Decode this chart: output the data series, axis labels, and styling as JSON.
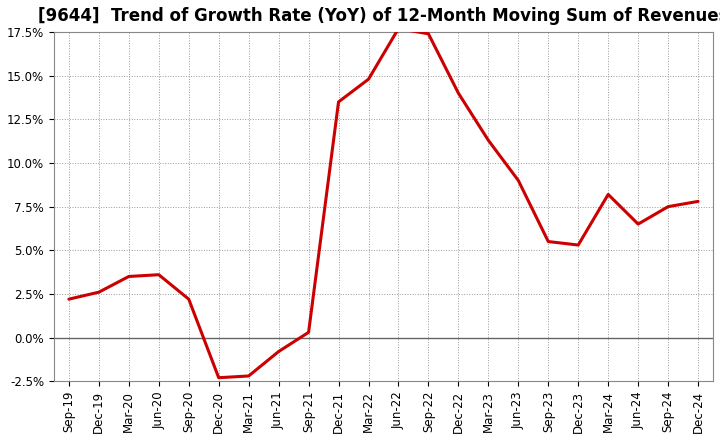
{
  "title": "[9644]  Trend of Growth Rate (YoY) of 12-Month Moving Sum of Revenues",
  "x_labels": [
    "Sep-19",
    "Dec-19",
    "Mar-20",
    "Jun-20",
    "Sep-20",
    "Dec-20",
    "Mar-21",
    "Jun-21",
    "Sep-21",
    "Dec-21",
    "Mar-22",
    "Jun-22",
    "Sep-22",
    "Dec-22",
    "Mar-23",
    "Jun-23",
    "Sep-23",
    "Dec-23",
    "Mar-24",
    "Jun-24",
    "Sep-24",
    "Dec-24"
  ],
  "y_values": [
    2.2,
    2.6,
    3.5,
    3.6,
    2.2,
    -2.3,
    -2.2,
    -0.8,
    0.3,
    13.5,
    14.8,
    17.7,
    17.4,
    14.0,
    11.3,
    9.0,
    5.5,
    5.3,
    8.2,
    6.5,
    7.5,
    7.8
  ],
  "line_color": "#cc0000",
  "line_width": 2.2,
  "ylim": [
    -2.5,
    17.5
  ],
  "yticks": [
    -2.5,
    0.0,
    2.5,
    5.0,
    7.5,
    10.0,
    12.5,
    15.0,
    17.5
  ],
  "background_color": "#ffffff",
  "plot_bg_color": "#ffffff",
  "grid_color": "#999999",
  "zero_line_color": "#666666",
  "title_fontsize": 12,
  "tick_fontsize": 8.5
}
